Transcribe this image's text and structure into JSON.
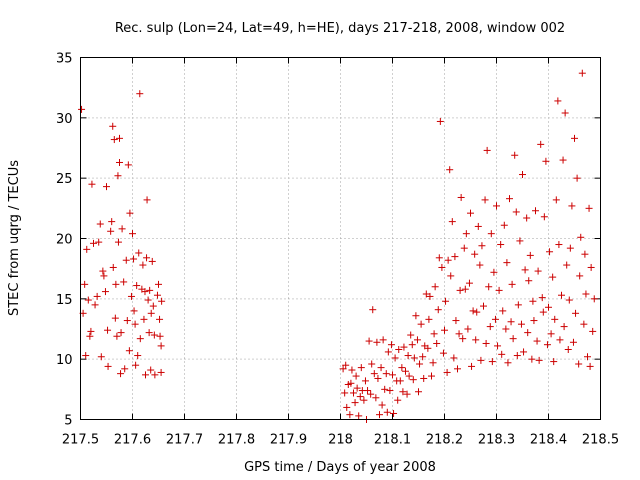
{
  "chart_data": {
    "type": "scatter",
    "title": "Rec. sulp (Lon=24, Lat=49, h=HE), days 217-218, 2008, window 002",
    "xlabel": "GPS time / Days of year 2008",
    "ylabel": "STEC from uqrg / TECUs",
    "xlim": [
      217.5,
      218.5
    ],
    "ylim": [
      5,
      35
    ],
    "x_ticks": [
      "217.5",
      "217.6",
      "217.7",
      "217.8",
      "217.9",
      "218",
      "218.1",
      "218.2",
      "218.3",
      "218.4",
      "218.5"
    ],
    "y_ticks": [
      "5",
      "10",
      "15",
      "20",
      "25",
      "30",
      "35"
    ],
    "grid": true,
    "marker": "+",
    "color": "#cc0000",
    "series": [
      {
        "name": "STEC",
        "points": [
          [
            217.502,
            30.7
          ],
          [
            217.505,
            13.8
          ],
          [
            217.508,
            16.2
          ],
          [
            217.51,
            10.3
          ],
          [
            217.512,
            19.1
          ],
          [
            217.515,
            14.9
          ],
          [
            217.518,
            11.9
          ],
          [
            217.52,
            12.3
          ],
          [
            217.522,
            24.5
          ],
          [
            217.525,
            19.6
          ],
          [
            217.528,
            14.5
          ],
          [
            217.532,
            15.2
          ],
          [
            217.535,
            19.7
          ],
          [
            217.538,
            21.2
          ],
          [
            217.54,
            10.2
          ],
          [
            217.543,
            17.3
          ],
          [
            217.545,
            16.9
          ],
          [
            217.548,
            15.6
          ],
          [
            217.55,
            24.3
          ],
          [
            217.552,
            12.4
          ],
          [
            217.553,
            9.4
          ],
          [
            217.558,
            20.6
          ],
          [
            217.56,
            21.4
          ],
          [
            217.562,
            29.3
          ],
          [
            217.563,
            17.6
          ],
          [
            217.565,
            28.2
          ],
          [
            217.567,
            13.4
          ],
          [
            217.568,
            16.2
          ],
          [
            217.57,
            11.9
          ],
          [
            217.572,
            25.2
          ],
          [
            217.573,
            19.7
          ],
          [
            217.575,
            26.3
          ],
          [
            217.575,
            28.3
          ],
          [
            217.577,
            8.8
          ],
          [
            217.578,
            12.2
          ],
          [
            217.58,
            20.8
          ],
          [
            217.583,
            16.4
          ],
          [
            217.585,
            9.2
          ],
          [
            217.588,
            18.2
          ],
          [
            217.59,
            13.2
          ],
          [
            217.592,
            26.1
          ],
          [
            217.594,
            10.7
          ],
          [
            217.595,
            22.1
          ],
          [
            217.598,
            15.2
          ],
          [
            217.6,
            20.4
          ],
          [
            217.602,
            18.3
          ],
          [
            217.603,
            14.0
          ],
          [
            217.605,
            12.9
          ],
          [
            217.606,
            9.5
          ],
          [
            217.608,
            16.1
          ],
          [
            217.61,
            10.3
          ],
          [
            217.612,
            18.8
          ],
          [
            217.614,
            32.0
          ],
          [
            217.615,
            11.7
          ],
          [
            217.618,
            15.8
          ],
          [
            217.62,
            17.8
          ],
          [
            217.622,
            13.3
          ],
          [
            217.624,
            15.6
          ],
          [
            217.625,
            8.7
          ],
          [
            217.627,
            18.4
          ],
          [
            217.628,
            23.2
          ],
          [
            217.63,
            14.9
          ],
          [
            217.632,
            12.2
          ],
          [
            217.633,
            15.7
          ],
          [
            217.635,
            9.1
          ],
          [
            217.636,
            13.8
          ],
          [
            217.638,
            18.1
          ],
          [
            217.64,
            14.4
          ],
          [
            217.642,
            12.0
          ],
          [
            217.643,
            8.7
          ],
          [
            217.648,
            15.3
          ],
          [
            217.65,
            16.2
          ],
          [
            217.652,
            13.3
          ],
          [
            217.653,
            11.9
          ],
          [
            217.655,
            8.9
          ],
          [
            217.655,
            11.1
          ],
          [
            217.656,
            14.8
          ],
          [
            218.005,
            9.2
          ],
          [
            218.008,
            7.2
          ],
          [
            218.01,
            9.5
          ],
          [
            218.012,
            6.0
          ],
          [
            218.015,
            7.9
          ],
          [
            218.018,
            5.4
          ],
          [
            218.02,
            8.0
          ],
          [
            218.022,
            9.1
          ],
          [
            218.025,
            7.2
          ],
          [
            218.028,
            6.4
          ],
          [
            218.03,
            8.6
          ],
          [
            218.032,
            7.6
          ],
          [
            218.035,
            5.3
          ],
          [
            218.038,
            6.9
          ],
          [
            218.04,
            9.3
          ],
          [
            218.042,
            7.4
          ],
          [
            218.045,
            6.6
          ],
          [
            218.048,
            8.2
          ],
          [
            218.05,
            5.0
          ],
          [
            218.052,
            7.4
          ],
          [
            218.055,
            11.5
          ],
          [
            218.058,
            7.1
          ],
          [
            218.06,
            9.6
          ],
          [
            218.062,
            14.1
          ],
          [
            218.065,
            8.8
          ],
          [
            218.068,
            6.8
          ],
          [
            218.07,
            11.4
          ],
          [
            218.072,
            8.4
          ],
          [
            218.075,
            5.4
          ],
          [
            218.078,
            9.3
          ],
          [
            218.08,
            6.2
          ],
          [
            218.082,
            11.6
          ],
          [
            218.085,
            7.5
          ],
          [
            218.088,
            8.8
          ],
          [
            218.09,
            5.6
          ],
          [
            218.092,
            10.6
          ],
          [
            218.095,
            7.4
          ],
          [
            218.098,
            11.2
          ],
          [
            218.1,
            8.7
          ],
          [
            218.102,
            5.5
          ],
          [
            218.105,
            10.1
          ],
          [
            218.108,
            8.2
          ],
          [
            218.11,
            6.6
          ],
          [
            218.112,
            10.8
          ],
          [
            218.115,
            8.2
          ],
          [
            218.118,
            9.3
          ],
          [
            218.12,
            7.3
          ],
          [
            218.122,
            11.0
          ],
          [
            218.125,
            9.0
          ],
          [
            218.128,
            7.1
          ],
          [
            218.13,
            10.3
          ],
          [
            218.132,
            8.6
          ],
          [
            218.135,
            12.0
          ],
          [
            218.138,
            11.2
          ],
          [
            218.14,
            8.3
          ],
          [
            218.142,
            10.1
          ],
          [
            218.145,
            13.6
          ],
          [
            218.148,
            11.6
          ],
          [
            218.15,
            7.3
          ],
          [
            218.152,
            9.6
          ],
          [
            218.155,
            12.9
          ],
          [
            218.158,
            10.2
          ],
          [
            218.16,
            8.4
          ],
          [
            218.162,
            11.1
          ],
          [
            218.165,
            15.4
          ],
          [
            218.168,
            10.9
          ],
          [
            218.17,
            13.3
          ],
          [
            218.172,
            15.2
          ],
          [
            218.175,
            8.6
          ],
          [
            218.178,
            9.7
          ],
          [
            218.18,
            12.1
          ],
          [
            218.182,
            16.0
          ],
          [
            218.185,
            11.3
          ],
          [
            218.188,
            14.1
          ],
          [
            218.19,
            18.4
          ],
          [
            218.192,
            29.7
          ],
          [
            218.195,
            17.6
          ],
          [
            218.198,
            10.5
          ],
          [
            218.2,
            12.4
          ],
          [
            218.202,
            14.8
          ],
          [
            218.205,
            8.9
          ],
          [
            218.207,
            18.2
          ],
          [
            218.21,
            25.7
          ],
          [
            218.212,
            16.9
          ],
          [
            218.215,
            21.4
          ],
          [
            218.218,
            10.1
          ],
          [
            218.22,
            18.5
          ],
          [
            218.222,
            13.2
          ],
          [
            218.225,
            9.2
          ],
          [
            218.228,
            12.1
          ],
          [
            218.23,
            15.7
          ],
          [
            218.232,
            23.4
          ],
          [
            218.235,
            11.7
          ],
          [
            218.238,
            19.2
          ],
          [
            218.24,
            15.8
          ],
          [
            218.242,
            20.4
          ],
          [
            218.245,
            12.5
          ],
          [
            218.248,
            16.3
          ],
          [
            218.25,
            22.1
          ],
          [
            218.252,
            9.4
          ],
          [
            218.255,
            14.0
          ],
          [
            218.258,
            18.7
          ],
          [
            218.26,
            11.6
          ],
          [
            218.262,
            13.9
          ],
          [
            218.265,
            21.0
          ],
          [
            218.268,
            17.8
          ],
          [
            218.27,
            9.9
          ],
          [
            218.272,
            19.4
          ],
          [
            218.275,
            14.4
          ],
          [
            218.278,
            23.2
          ],
          [
            218.28,
            11.3
          ],
          [
            218.282,
            27.3
          ],
          [
            218.285,
            16.0
          ],
          [
            218.288,
            12.7
          ],
          [
            218.29,
            20.4
          ],
          [
            218.292,
            9.8
          ],
          [
            218.295,
            17.2
          ],
          [
            218.298,
            13.3
          ],
          [
            218.3,
            22.7
          ],
          [
            218.302,
            11.1
          ],
          [
            218.305,
            15.7
          ],
          [
            218.308,
            19.5
          ],
          [
            218.31,
            10.4
          ],
          [
            218.312,
            14.0
          ],
          [
            218.315,
            21.1
          ],
          [
            218.318,
            12.5
          ],
          [
            218.32,
            18.0
          ],
          [
            218.322,
            9.7
          ],
          [
            218.325,
            23.3
          ],
          [
            218.328,
            13.1
          ],
          [
            218.33,
            16.2
          ],
          [
            218.332,
            11.7
          ],
          [
            218.335,
            26.9
          ],
          [
            218.338,
            22.2
          ],
          [
            218.34,
            10.3
          ],
          [
            218.342,
            14.5
          ],
          [
            218.345,
            19.8
          ],
          [
            218.348,
            12.9
          ],
          [
            218.35,
            25.3
          ],
          [
            218.352,
            10.6
          ],
          [
            218.355,
            17.4
          ],
          [
            218.358,
            21.7
          ],
          [
            218.36,
            12.2
          ],
          [
            218.362,
            16.5
          ],
          [
            218.365,
            18.6
          ],
          [
            218.368,
            10.0
          ],
          [
            218.37,
            14.8
          ],
          [
            218.372,
            13.2
          ],
          [
            218.375,
            22.3
          ],
          [
            218.378,
            11.5
          ],
          [
            218.38,
            17.3
          ],
          [
            218.382,
            9.9
          ],
          [
            218.385,
            27.8
          ],
          [
            218.388,
            15.1
          ],
          [
            218.39,
            13.9
          ],
          [
            218.392,
            21.8
          ],
          [
            218.395,
            26.4
          ],
          [
            218.398,
            11.2
          ],
          [
            218.4,
            14.3
          ],
          [
            218.402,
            18.9
          ],
          [
            218.405,
            12.1
          ],
          [
            218.408,
            16.8
          ],
          [
            218.41,
            9.8
          ],
          [
            218.412,
            13.3
          ],
          [
            218.415,
            23.2
          ],
          [
            218.418,
            31.4
          ],
          [
            218.42,
            19.5
          ],
          [
            218.422,
            11.6
          ],
          [
            218.425,
            15.3
          ],
          [
            218.428,
            26.5
          ],
          [
            218.43,
            12.7
          ],
          [
            218.432,
            30.4
          ],
          [
            218.435,
            17.8
          ],
          [
            218.438,
            10.8
          ],
          [
            218.44,
            14.9
          ],
          [
            218.442,
            19.2
          ],
          [
            218.445,
            22.7
          ],
          [
            218.448,
            11.4
          ],
          [
            218.45,
            28.3
          ],
          [
            218.452,
            13.8
          ],
          [
            218.455,
            25.0
          ],
          [
            218.458,
            9.6
          ],
          [
            218.46,
            16.9
          ],
          [
            218.462,
            20.1
          ],
          [
            218.465,
            33.7
          ],
          [
            218.468,
            12.9
          ],
          [
            218.47,
            18.7
          ],
          [
            218.472,
            15.4
          ],
          [
            218.475,
            10.2
          ],
          [
            218.478,
            22.5
          ],
          [
            218.48,
            9.4
          ],
          [
            218.482,
            17.6
          ],
          [
            218.485,
            12.3
          ],
          [
            218.488,
            15.0
          ]
        ]
      }
    ]
  }
}
